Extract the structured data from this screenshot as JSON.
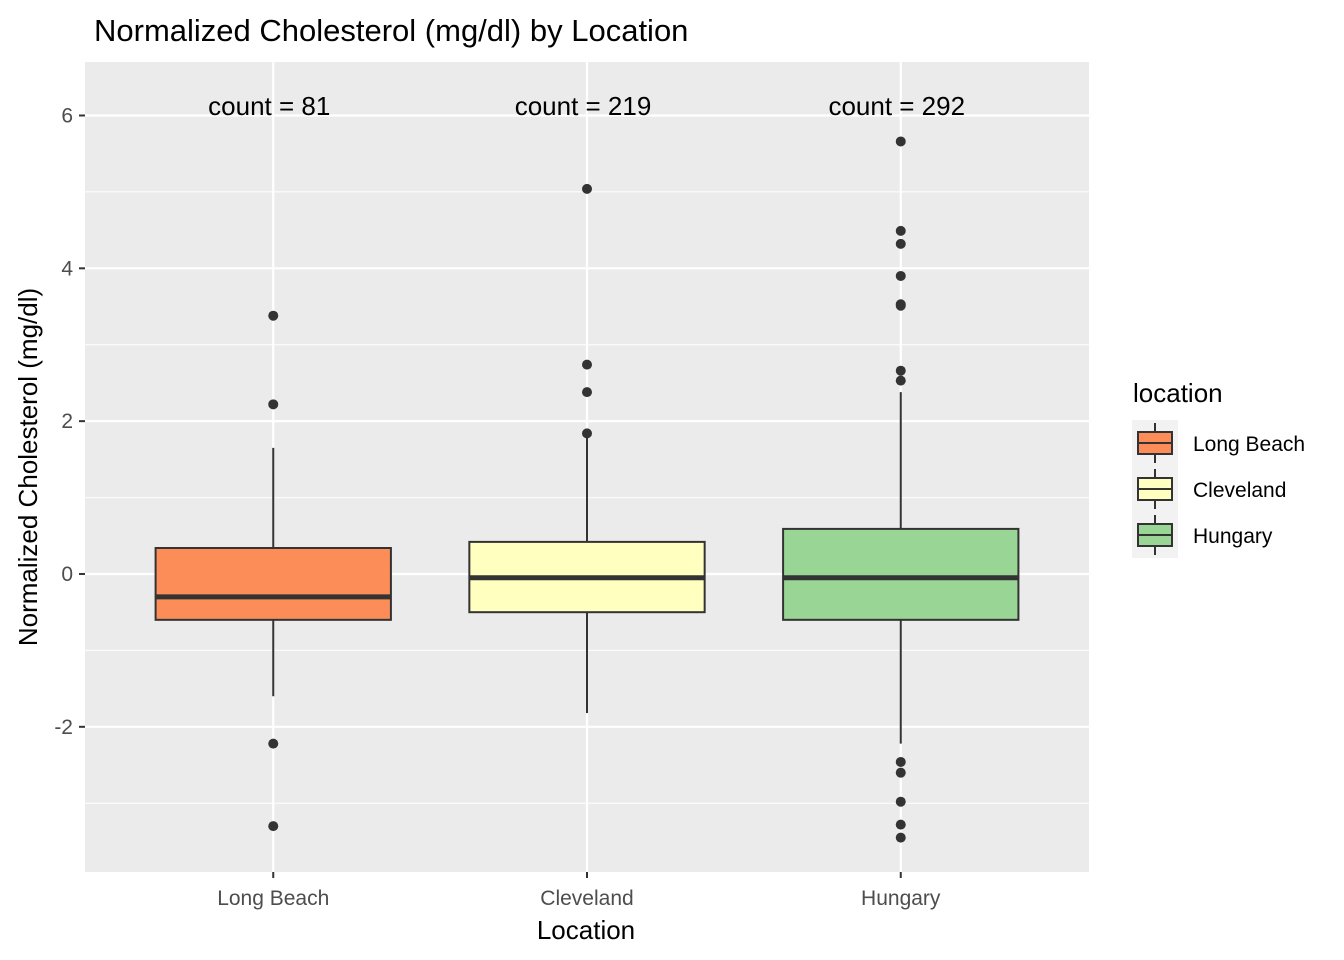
{
  "chart_data": {
    "type": "boxplot",
    "title": "Normalized Cholesterol (mg/dl) by Location",
    "xlabel": "Location",
    "ylabel": "Normalized Cholesterol (mg/dl)",
    "ylim": [
      -3.9,
      6.7
    ],
    "y_ticks": [
      -2,
      0,
      2,
      4,
      6
    ],
    "y_tick_labels": [
      "-2",
      "0",
      "2",
      "4",
      "6"
    ],
    "grid": true,
    "categories": [
      "Long Beach",
      "Cleveland",
      "Hungary"
    ],
    "boxes": [
      {
        "category": "Long Beach",
        "count_label": "count = 81",
        "fill": "#fc8d59",
        "q1": -0.6,
        "median": -0.3,
        "q3": 0.34,
        "whisker_low": -1.6,
        "whisker_high": 1.65,
        "outliers": [
          3.38,
          2.22,
          -2.22,
          -3.3
        ]
      },
      {
        "category": "Cleveland",
        "count_label": "count = 219",
        "fill": "#ffffbf",
        "q1": -0.5,
        "median": -0.05,
        "q3": 0.42,
        "whisker_low": -1.82,
        "whisker_high": 1.78,
        "outliers": [
          5.04,
          2.74,
          2.38,
          1.84
        ]
      },
      {
        "category": "Hungary",
        "count_label": "count = 292",
        "fill": "#99d594",
        "q1": -0.6,
        "median": -0.05,
        "q3": 0.59,
        "whisker_low": -2.22,
        "whisker_high": 2.38,
        "outliers": [
          5.66,
          4.49,
          4.32,
          3.9,
          3.53,
          3.51,
          2.66,
          2.53,
          -2.46,
          -2.6,
          -2.98,
          -3.28,
          -3.45
        ]
      }
    ],
    "legend": {
      "title": "location",
      "placement": "right",
      "items": [
        {
          "label": "Long Beach",
          "color": "#fc8d59"
        },
        {
          "label": "Cleveland",
          "color": "#ffffbf"
        },
        {
          "label": "Hungary",
          "color": "#99d594"
        }
      ]
    },
    "colors": {
      "panel": "#ebebeb",
      "grid": "#ffffff",
      "box_stroke": "#333333",
      "median": "#333333",
      "outlier": "#333333"
    }
  }
}
